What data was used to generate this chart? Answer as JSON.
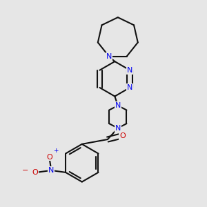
{
  "bg": "#e6e6e6",
  "bc": "#111111",
  "nc": "#0000ee",
  "oc": "#cc0000",
  "lw": 1.5,
  "dbo": 0.13,
  "fs": 8.0,
  "figsize": [
    3.0,
    3.0
  ],
  "dpi": 100,
  "xlim": [
    0,
    10
  ],
  "ylim": [
    0,
    10
  ]
}
